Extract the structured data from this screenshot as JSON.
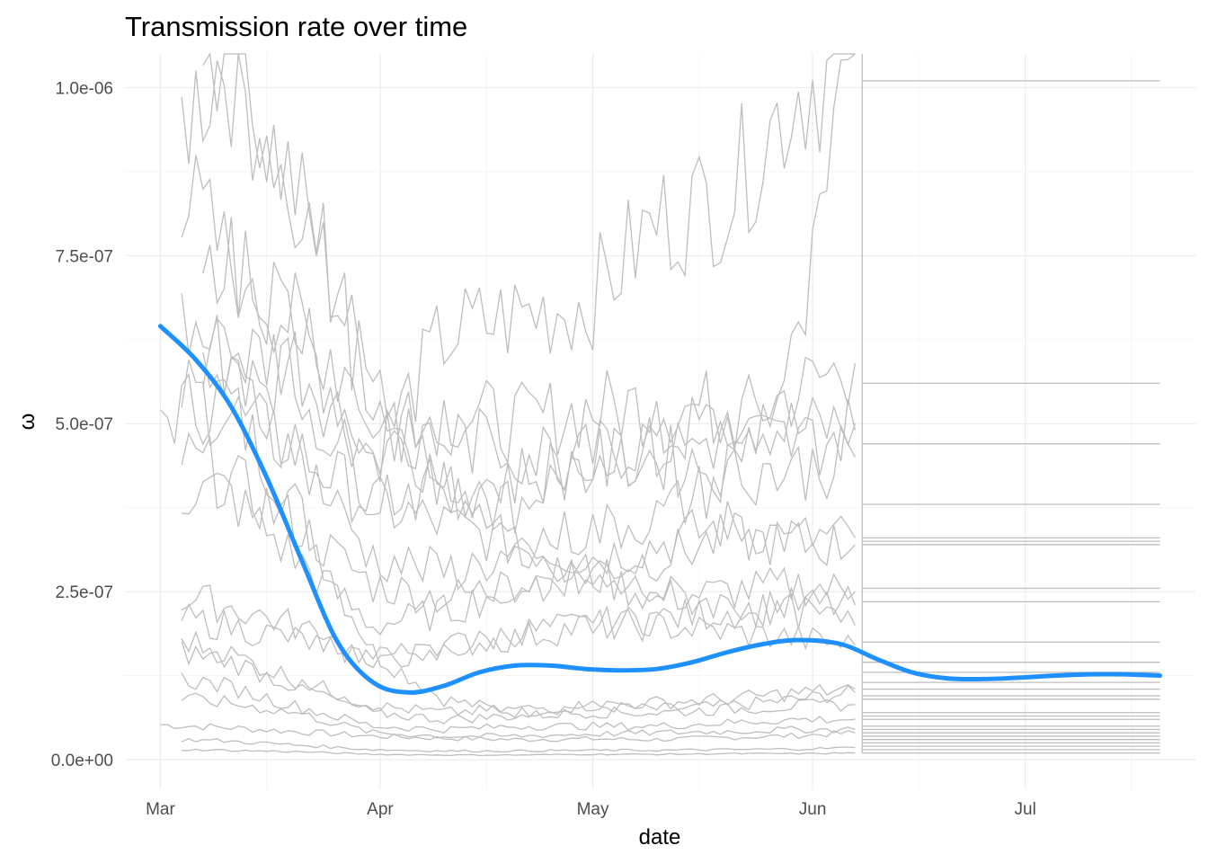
{
  "chart_data": {
    "type": "line",
    "title": "Transmission rate over time",
    "xlabel": "date",
    "ylabel": "ω",
    "x_ticks": [
      "Mar",
      "Apr",
      "May",
      "Jun",
      "Jul"
    ],
    "y_ticks": [
      "0.0e+00",
      "2.5e-07",
      "5.0e-07",
      "7.5e-07",
      "1.0e-06"
    ],
    "ylim": [
      -4.4e-08,
      1.05e-06
    ],
    "xlim": [
      "2020-02-25",
      "2020-07-25"
    ],
    "grid": true,
    "colors": {
      "individual_series": "#bebebe",
      "smooth": "#1e90ff",
      "grid": "#ebebeb"
    },
    "smooth_series": {
      "x": [
        "2020-03-01",
        "2020-03-06",
        "2020-03-11",
        "2020-03-16",
        "2020-03-21",
        "2020-03-26",
        "2020-03-31",
        "2020-04-05",
        "2020-04-10",
        "2020-04-15",
        "2020-04-20",
        "2020-04-25",
        "2020-04-30",
        "2020-05-05",
        "2020-05-10",
        "2020-05-15",
        "2020-05-20",
        "2020-05-25",
        "2020-05-30",
        "2020-06-05",
        "2020-06-10",
        "2020-06-15",
        "2020-06-20",
        "2020-06-25",
        "2020-06-30",
        "2020-07-05",
        "2020-07-10",
        "2020-07-15",
        "2020-07-20"
      ],
      "y": [
        6.45e-07,
        5.95e-07,
        5.25e-07,
        4.2e-07,
        2.95e-07,
        1.75e-07,
        1.15e-07,
        1e-07,
        1.1e-07,
        1.3e-07,
        1.4e-07,
        1.4e-07,
        1.35e-07,
        1.33e-07,
        1.35e-07,
        1.45e-07,
        1.6e-07,
        1.72e-07,
        1.78e-07,
        1.72e-07,
        1.5e-07,
        1.3e-07,
        1.21e-07,
        1.2e-07,
        1.22e-07,
        1.25e-07,
        1.27e-07,
        1.27e-07,
        1.25e-07
      ]
    },
    "individual_series": [
      {
        "x": [
          "2020-03-01",
          "2020-03-10",
          "2020-03-20",
          "2020-03-31",
          "2020-04-10",
          "2020-04-20",
          "2020-04-30",
          "2020-05-10",
          "2020-05-20",
          "2020-05-30",
          "2020-06-07"
        ],
        "y": [
          5.2e-08,
          4.8e-08,
          4.2e-08,
          3.5e-08,
          3.2e-08,
          3e-08,
          3.1e-08,
          3e-08,
          3.3e-08,
          3.6e-08,
          4e-08
        ]
      },
      {
        "x": [
          "2020-03-01",
          "2020-03-10",
          "2020-03-20",
          "2020-03-31",
          "2020-04-10",
          "2020-04-20",
          "2020-04-30",
          "2020-05-10",
          "2020-05-20",
          "2020-05-30",
          "2020-06-07"
        ],
        "y": [
          5.1e-07,
          5.4e-07,
          3.8e-07,
          1.6e-07,
          9e-08,
          7e-08,
          8e-08,
          7.5e-08,
          8e-08,
          9e-08,
          1e-07
        ]
      },
      {
        "x": [
          "2020-03-04",
          "2020-03-10",
          "2020-03-20",
          "2020-03-31",
          "2020-04-10",
          "2020-04-20",
          "2020-04-30",
          "2020-05-10",
          "2020-05-20",
          "2020-05-30",
          "2020-06-07"
        ],
        "y": [
          9.5e-07,
          1.05e-06,
          8.5e-07,
          5.5e-07,
          4e-07,
          3.8e-07,
          4.5e-07,
          4.8e-07,
          5e-07,
          5.5e-07,
          5.9e-07
        ]
      },
      {
        "x": [
          "2020-03-04",
          "2020-03-10",
          "2020-03-20",
          "2020-03-31",
          "2020-04-10",
          "2020-04-20",
          "2020-04-30",
          "2020-05-10",
          "2020-05-20",
          "2020-05-30",
          "2020-06-07"
        ],
        "y": [
          8.5e-07,
          7.5e-07,
          6.5e-07,
          4.5e-07,
          5.2e-07,
          5e-07,
          5.2e-07,
          5.3e-07,
          5.2e-07,
          4.9e-07,
          5e-07
        ]
      },
      {
        "x": [
          "2020-03-04",
          "2020-03-10",
          "2020-03-20",
          "2020-03-31",
          "2020-04-10",
          "2020-04-20",
          "2020-04-30",
          "2020-05-10",
          "2020-05-20",
          "2020-05-30",
          "2020-06-07"
        ],
        "y": [
          6.5e-07,
          6e-07,
          6e-07,
          4.5e-07,
          6.3e-07,
          6.6e-07,
          6.8e-07,
          8e-07,
          8.4e-07,
          1e-06,
          1.05e-06
        ]
      },
      {
        "x": [
          "2020-03-04",
          "2020-03-10",
          "2020-03-20",
          "2020-03-31",
          "2020-04-10",
          "2020-04-20",
          "2020-04-30",
          "2020-05-10",
          "2020-05-20",
          "2020-05-30",
          "2020-06-07"
        ],
        "y": [
          5.5e-07,
          5.2e-07,
          4.6e-07,
          3.8e-07,
          3.5e-07,
          3.2e-07,
          3e-07,
          3.2e-07,
          3.5e-07,
          3.3e-07,
          3.3e-07
        ]
      },
      {
        "x": [
          "2020-03-04",
          "2020-03-10",
          "2020-03-20",
          "2020-03-31",
          "2020-04-10",
          "2020-04-20",
          "2020-04-30",
          "2020-05-10",
          "2020-05-20",
          "2020-05-30",
          "2020-06-07"
        ],
        "y": [
          4.5e-07,
          4.2e-07,
          3.5e-07,
          2.6e-07,
          2.4e-07,
          2.6e-07,
          2.8e-07,
          2.4e-07,
          2.5e-07,
          2.6e-07,
          2.5e-07
        ]
      },
      {
        "x": [
          "2020-03-04",
          "2020-03-10",
          "2020-03-20",
          "2020-03-31",
          "2020-04-10",
          "2020-04-20",
          "2020-04-30",
          "2020-05-10",
          "2020-05-20",
          "2020-05-30",
          "2020-06-07"
        ],
        "y": [
          4e-07,
          4e-07,
          3e-07,
          2e-07,
          2.2e-07,
          2.6e-07,
          2.8e-07,
          3e-07,
          3.3e-07,
          3.2e-07,
          3.2e-07
        ]
      },
      {
        "x": [
          "2020-03-04",
          "2020-03-10",
          "2020-03-20",
          "2020-03-31",
          "2020-04-10",
          "2020-04-20",
          "2020-04-30",
          "2020-05-10",
          "2020-05-20",
          "2020-05-30",
          "2020-06-07"
        ],
        "y": [
          2.4e-07,
          2.3e-07,
          2e-07,
          1.5e-07,
          1.6e-07,
          1.9e-07,
          2e-07,
          2.1e-07,
          2.2e-07,
          2.3e-07,
          2.3e-07
        ]
      },
      {
        "x": [
          "2020-03-04",
          "2020-03-10",
          "2020-03-20",
          "2020-03-31",
          "2020-04-10",
          "2020-04-20",
          "2020-04-30",
          "2020-05-10",
          "2020-05-20",
          "2020-05-30",
          "2020-06-07"
        ],
        "y": [
          2.1e-07,
          2e-07,
          1.8e-07,
          1.5e-07,
          1.7e-07,
          1.8e-07,
          2e-07,
          2e-07,
          1.9e-07,
          1.8e-07,
          1.7e-07
        ]
      },
      {
        "x": [
          "2020-03-04",
          "2020-03-10",
          "2020-03-20",
          "2020-03-31",
          "2020-04-10",
          "2020-04-20",
          "2020-04-30",
          "2020-05-10",
          "2020-05-20",
          "2020-05-30",
          "2020-06-07"
        ],
        "y": [
          1.8e-07,
          1.6e-07,
          1.2e-07,
          8e-08,
          7e-08,
          7.5e-08,
          8e-08,
          8.5e-08,
          9e-08,
          1e-07,
          1.05e-07
        ]
      },
      {
        "x": [
          "2020-03-04",
          "2020-03-10",
          "2020-03-20",
          "2020-03-31",
          "2020-04-10",
          "2020-04-20",
          "2020-04-30",
          "2020-05-10",
          "2020-05-20",
          "2020-05-30",
          "2020-06-07"
        ],
        "y": [
          1.6e-07,
          1.5e-07,
          1.1e-07,
          7e-08,
          6e-08,
          6.5e-08,
          7e-08,
          7e-08,
          7.5e-08,
          8e-08,
          8.2e-08
        ]
      },
      {
        "x": [
          "2020-03-04",
          "2020-03-10",
          "2020-03-20",
          "2020-03-31",
          "2020-04-10",
          "2020-04-20",
          "2020-04-30",
          "2020-05-10",
          "2020-05-20",
          "2020-05-30",
          "2020-06-07"
        ],
        "y": [
          1.2e-07,
          1.1e-07,
          8e-08,
          5e-08,
          4.5e-08,
          5e-08,
          5e-08,
          5e-08,
          5.5e-08,
          6e-08,
          6e-08
        ]
      },
      {
        "x": [
          "2020-03-04",
          "2020-03-10",
          "2020-03-20",
          "2020-03-31",
          "2020-04-10",
          "2020-04-20",
          "2020-04-30",
          "2020-05-10",
          "2020-05-20",
          "2020-05-30",
          "2020-06-07"
        ],
        "y": [
          9e-08,
          8.5e-08,
          7e-08,
          4e-08,
          3.5e-08,
          3.5e-08,
          3.8e-08,
          4e-08,
          4.2e-08,
          4.5e-08,
          4.5e-08
        ]
      },
      {
        "x": [
          "2020-03-04",
          "2020-03-10",
          "2020-03-20",
          "2020-03-31",
          "2020-04-10",
          "2020-04-20",
          "2020-04-30",
          "2020-05-10",
          "2020-05-20",
          "2020-05-30",
          "2020-06-07"
        ],
        "y": [
          3e-08,
          2.8e-08,
          2.2e-08,
          1.5e-08,
          1.3e-08,
          1.3e-08,
          1.4e-08,
          1.4e-08,
          1.5e-08,
          1.6e-08,
          1.8e-08
        ]
      },
      {
        "x": [
          "2020-03-04",
          "2020-03-10",
          "2020-03-20",
          "2020-03-31",
          "2020-04-10",
          "2020-04-20",
          "2020-04-30",
          "2020-05-10",
          "2020-05-20",
          "2020-05-30",
          "2020-06-07"
        ],
        "y": [
          1.5e-08,
          1.4e-08,
          1.2e-08,
          8e-09,
          7e-09,
          7e-09,
          8e-09,
          8e-09,
          9e-09,
          9e-09,
          1e-08
        ]
      },
      {
        "x": [
          "2020-03-07",
          "2020-03-12",
          "2020-03-18",
          "2020-03-24",
          "2020-03-31",
          "2020-04-10",
          "2020-04-20",
          "2020-04-30",
          "2020-05-10",
          "2020-05-20",
          "2020-05-30",
          "2020-06-07"
        ],
        "y": [
          1.05e-06,
          1.05e-06,
          9e-07,
          7.5e-07,
          5.3e-07,
          4.2e-07,
          3.2e-07,
          3.4e-07,
          3.6e-07,
          4.2e-07,
          6e-07,
          1.05e-06
        ]
      },
      {
        "x": [
          "2020-03-07",
          "2020-03-12",
          "2020-03-18",
          "2020-03-24",
          "2020-03-31",
          "2020-04-10",
          "2020-04-20",
          "2020-04-30",
          "2020-05-10",
          "2020-05-20",
          "2020-05-30",
          "2020-06-07"
        ],
        "y": [
          7.8e-07,
          7.4e-07,
          6.8e-07,
          6.2e-07,
          5e-07,
          4.8e-07,
          4.6e-07,
          4.5e-07,
          4.6e-07,
          4.8e-07,
          4.7e-07,
          4.9e-07
        ]
      },
      {
        "x": [
          "2020-03-07",
          "2020-03-12",
          "2020-03-18",
          "2020-03-24",
          "2020-03-31",
          "2020-04-10",
          "2020-04-20",
          "2020-04-30",
          "2020-05-10",
          "2020-05-20",
          "2020-05-30",
          "2020-06-07"
        ],
        "y": [
          6.2e-07,
          6e-07,
          5.8e-07,
          5e-07,
          4e-07,
          4e-07,
          4.2e-07,
          4.4e-07,
          4.5e-07,
          4.3e-07,
          4.3e-07,
          4.5e-07
        ]
      },
      {
        "x": [
          "2020-03-07",
          "2020-03-12",
          "2020-03-18",
          "2020-03-24",
          "2020-03-31",
          "2020-04-10",
          "2020-04-20",
          "2020-04-30",
          "2020-05-10",
          "2020-05-20",
          "2020-05-30",
          "2020-06-07"
        ],
        "y": [
          5.8e-07,
          5.5e-07,
          5e-07,
          4e-07,
          3e-07,
          2.8e-07,
          3e-07,
          2.6e-07,
          2.5e-07,
          2.3e-07,
          2.2e-07,
          2e-07
        ]
      }
    ],
    "horizontal_tail_levels": [
      1.01e-06,
      5.6e-07,
      4.7e-07,
      3.8e-07,
      3.3e-07,
      3.25e-07,
      3.2e-07,
      2.55e-07,
      2.35e-07,
      1.75e-07,
      1.45e-07,
      1.3e-07,
      1.15e-07,
      1.05e-07,
      9.5e-08,
      9e-08,
      7e-08,
      6.5e-08,
      6e-08,
      5e-08,
      4.5e-08,
      4e-08,
      3.5e-08,
      3e-08,
      2.5e-08,
      2e-08,
      1.5e-08,
      1e-08
    ]
  }
}
